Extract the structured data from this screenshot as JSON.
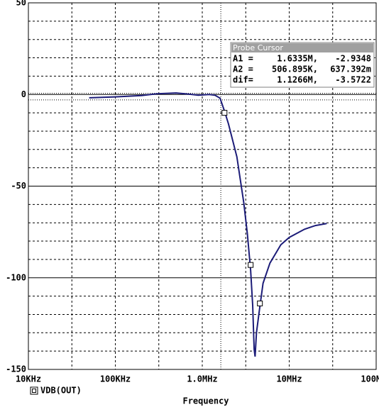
{
  "chart_data": {
    "type": "line",
    "xlabel": "Frequency",
    "xscale": "log",
    "xlim": [
      10000,
      100000000
    ],
    "xticks": [
      {
        "value": 10000,
        "label": "10KHz"
      },
      {
        "value": 100000,
        "label": "100KHz"
      },
      {
        "value": 1000000,
        "label": "1.0MHz"
      },
      {
        "value": 10000000,
        "label": "10MHz"
      },
      {
        "value": 100000000,
        "label": "100MHz"
      }
    ],
    "xminorticks": [
      31623,
      316228,
      3162278,
      31622777
    ],
    "ylim": [
      -150,
      50
    ],
    "yticks": [
      50,
      0,
      -50,
      -100,
      -150
    ],
    "yminorticks": [
      40,
      30,
      20,
      10,
      -10,
      -20,
      -30,
      -40,
      -60,
      -70,
      -80,
      -90,
      -110,
      -120,
      -130,
      -140
    ],
    "grid": true,
    "series": [
      {
        "name": "VDB(OUT)",
        "color": "#1c1c78",
        "x": [
          50000,
          100000,
          200000,
          300000,
          500000,
          700000,
          900000,
          1200000,
          1400000,
          1600000,
          1800000,
          2000000,
          2500000,
          3000000,
          3300000,
          3600000,
          3800000,
          3950000,
          4050000,
          4200000,
          4500000,
          5000000,
          6000000,
          8000000,
          10000000,
          15000000,
          20000000,
          27000000
        ],
        "values": [
          -1.8,
          -1.3,
          -0.6,
          0.4,
          0.8,
          0.2,
          -0.4,
          0,
          -0.4,
          -2,
          -9,
          -16,
          -34,
          -59,
          -76,
          -96,
          -115,
          -139,
          -143,
          -130,
          -119,
          -103,
          -92,
          -82,
          -78,
          -73.5,
          -71.5,
          -70.4
        ],
        "markers": {
          "x": [
            1800000,
            3600000,
            4600000
          ],
          "values": [
            -10,
            -93,
            -114
          ]
        }
      }
    ],
    "cursor_lines": {
      "x": [
        1633500
      ],
      "values": [
        -2.9348,
        0.637392
      ]
    },
    "probe_cursor": {
      "title": "Probe Cursor",
      "rows": [
        [
          "A1 =",
          "1.6335M,",
          "-2.9348"
        ],
        [
          "A2 =",
          "506.895K,",
          "637.392m"
        ],
        [
          "dif=",
          "1.1266M,",
          "-3.5722"
        ]
      ]
    }
  }
}
